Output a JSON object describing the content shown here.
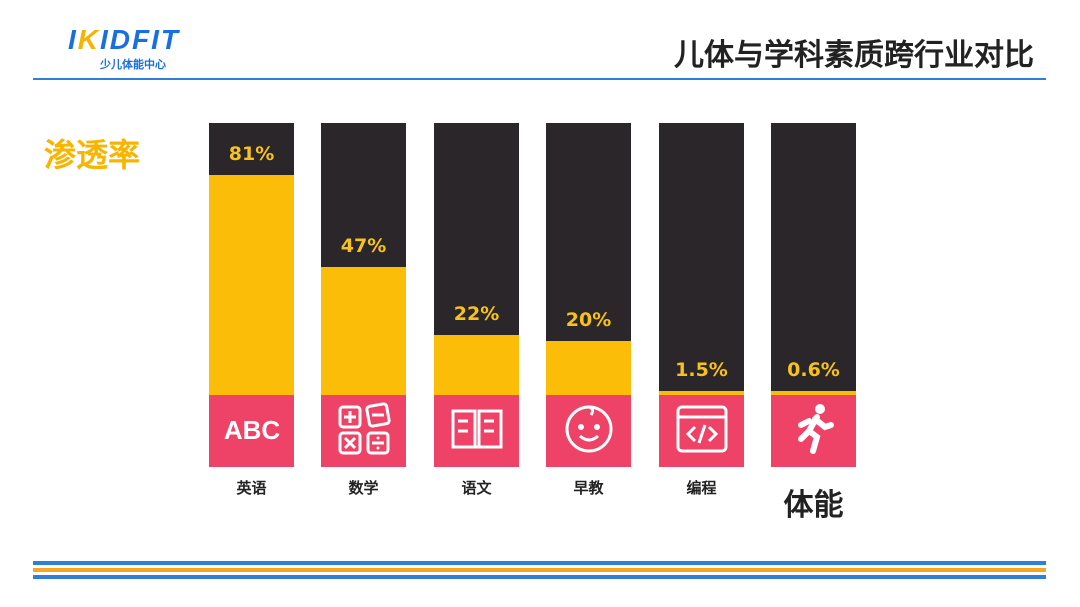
{
  "logo": {
    "text_a": "I",
    "text_k": "K",
    "text_b": "IDFIT",
    "subtitle": "少儿体能中心"
  },
  "header": {
    "title": "儿体与学科素质跨行业对比"
  },
  "colors": {
    "accent_blue": "#2f7fd8",
    "fill": "#fbbd08",
    "bar_bg": "#2a2629",
    "icon_bg": "#ee4266",
    "stripe_orange": "#f5a623"
  },
  "chart_data": {
    "type": "bar",
    "title": "渗透率",
    "categories": [
      "英语",
      "数学",
      "语文",
      "早教",
      "编程",
      "体能"
    ],
    "values": [
      81,
      47,
      22,
      20,
      1.5,
      0.6
    ],
    "labels": [
      "81%",
      "47%",
      "22%",
      "20%",
      "1.5%",
      "0.6%"
    ],
    "icons": [
      "abc-icon",
      "calculator-icon",
      "book-icon",
      "baby-face-icon",
      "code-window-icon",
      "running-person-icon"
    ],
    "ylim": [
      0,
      100
    ],
    "xlabel": "",
    "ylabel": "渗透率"
  }
}
